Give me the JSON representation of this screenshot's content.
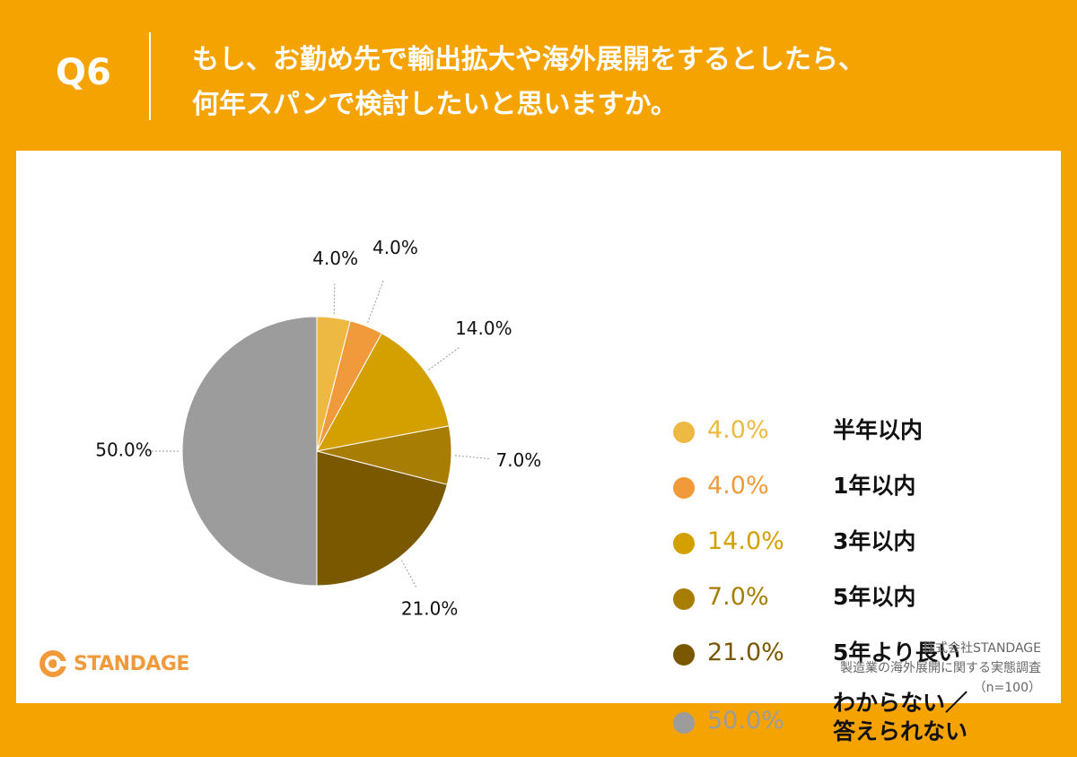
{
  "header": {
    "q_label": "Q6",
    "title_line1": "もし、お勤め先で輸出拡大や海外展開をするとしたら、",
    "title_line2": "何年スパンで検討したいと思いますか。"
  },
  "chart_data": {
    "type": "pie",
    "title": "",
    "categories": [
      "半年以内",
      "1年以内",
      "3年以内",
      "5年以内",
      "5年より長い",
      "わからない／答えられない"
    ],
    "values": [
      4.0,
      4.0,
      14.0,
      7.0,
      21.0,
      50.0
    ],
    "value_labels": [
      "4.0%",
      "4.0%",
      "14.0%",
      "7.0%",
      "21.0%",
      "50.0%"
    ],
    "colors": [
      "#eeb943",
      "#f19a3c",
      "#d4a000",
      "#a77d04",
      "#7a5800",
      "#9c9c9c"
    ],
    "start_angle": "12 o'clock",
    "direction": "clockwise",
    "legend_position": "right"
  },
  "legend": {
    "items": [
      {
        "value": "4.0%",
        "label": "半年以内",
        "color": "#eeb943"
      },
      {
        "value": "4.0%",
        "label": "1年以内",
        "color": "#f19a3c"
      },
      {
        "value": "14.0%",
        "label": "3年以内",
        "color": "#d4a000"
      },
      {
        "value": "7.0%",
        "label": "5年以内",
        "color": "#a77d04"
      },
      {
        "value": "21.0%",
        "label": "5年より長い",
        "color": "#7a5800"
      },
      {
        "value": "50.0%",
        "label_line1": "わからない／",
        "label_line2": "答えられない",
        "color": "#9c9c9c"
      }
    ]
  },
  "logo": {
    "text": "STANDAGE",
    "color": "#f19a3c"
  },
  "source": {
    "line1": "株式会社STANDAGE",
    "line2": "製造業の海外展開に関する実態調査",
    "line3": "（n=100）"
  }
}
